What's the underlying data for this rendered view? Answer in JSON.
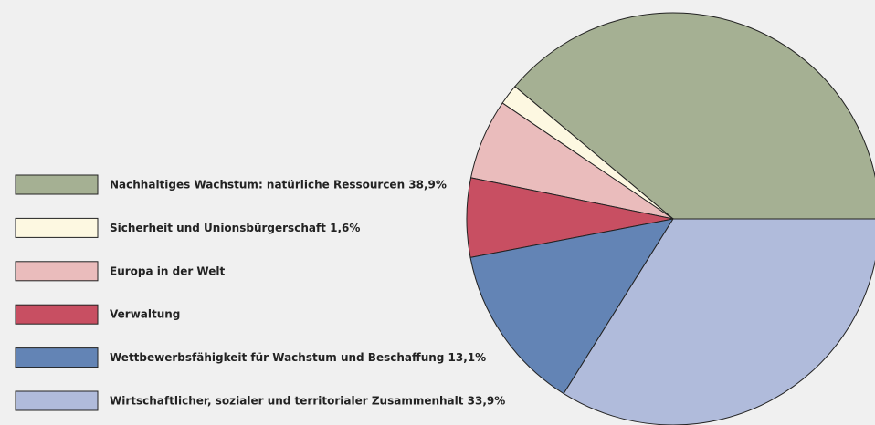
{
  "chart_data": {
    "type": "pie",
    "categories": [
      "Nachhaltiges Wachstum: natürliche Ressourcen 38,9%",
      "Sicherheit und Unionsbürgerschaft 1,6%",
      "Europa in der Welt",
      "Verwaltung",
      "Wettbewerbsfähigkeit für Wachstum und Beschaffung 13,1%",
      "Wirtschaftlicher, sozialer und territorialer Zusammenhalt 33,9%"
    ],
    "values": [
      38.9,
      1.6,
      6.3,
      6.2,
      13.1,
      33.9
    ],
    "colors": [
      "#a5b093",
      "#fdf8e1",
      "#eabcbc",
      "#c84f62",
      "#6384b5",
      "#b0bbdb"
    ],
    "legend": "left"
  }
}
